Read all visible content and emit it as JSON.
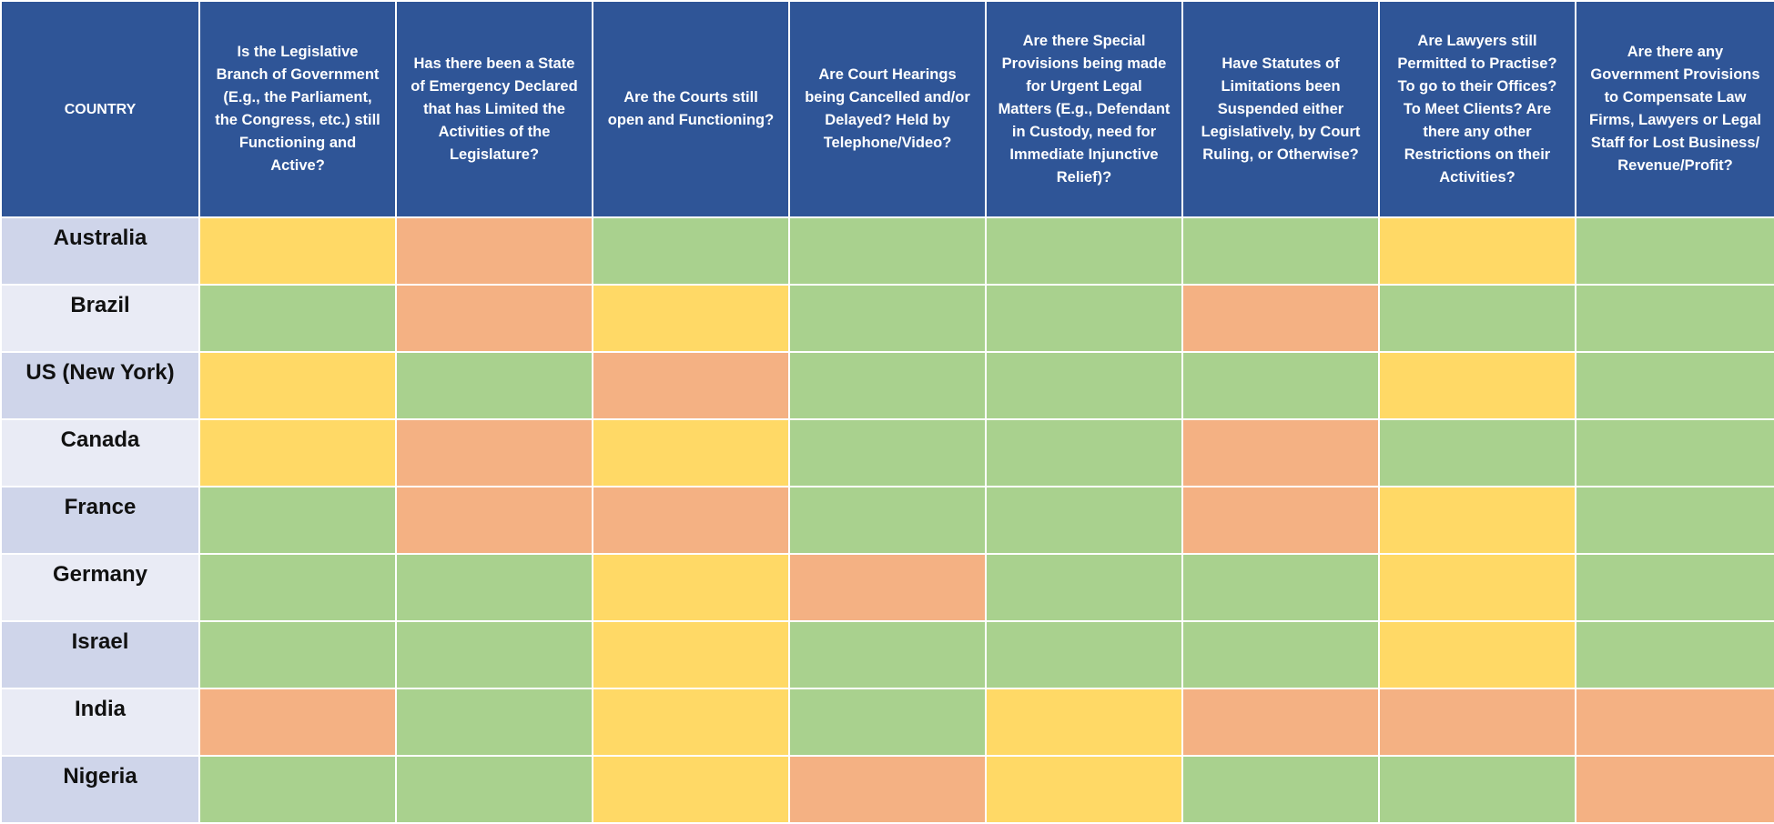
{
  "colors": {
    "header_bg": "#2f5597",
    "header_text": "#ffffff",
    "country_row_odd": "#cfd5ea",
    "country_row_even": "#e9ebf5",
    "green": "#a9d18e",
    "yellow": "#ffd966",
    "orange": "#f4b183"
  },
  "headers": [
    "COUNTRY",
    "Is the Legislative Branch of Government (E.g., the Parliament, the Congress, etc.) still Functioning and Active?",
    "Has there been a State of Emergency Declared that has Limited the Activities of the Legislature?",
    "Are the Courts still open and Functioning?",
    "Are Court Hearings being Cancelled and/or Delayed? Held by Telephone/Video?",
    "Are there Special Provisions being made for Urgent Legal Matters (E.g., Defendant in Custody, need for Immediate Injunctive Relief)?",
    "Have Statutes of Limitations been Suspended either Legislatively, by Court Ruling, or Otherwise?",
    "Are Lawyers still Permitted to Practise? To go to their Offices? To Meet Clients? Are there any other Restrictions on their Activities?",
    "Are there any Government Provisions to Compensate Law Firms, Lawyers or Legal Staff for Lost Business/ Revenue/Profit?"
  ],
  "rows": [
    {
      "country": "Australia",
      "cells": [
        "yellow",
        "orange",
        "green",
        "green",
        "green",
        "green",
        "yellow",
        "green"
      ]
    },
    {
      "country": "Brazil",
      "cells": [
        "green",
        "orange",
        "yellow",
        "green",
        "green",
        "orange",
        "green",
        "green"
      ]
    },
    {
      "country": "US (New York)",
      "cells": [
        "yellow",
        "green",
        "orange",
        "green",
        "green",
        "green",
        "yellow",
        "green"
      ]
    },
    {
      "country": "Canada",
      "cells": [
        "yellow",
        "orange",
        "yellow",
        "green",
        "green",
        "orange",
        "green",
        "green"
      ]
    },
    {
      "country": "France",
      "cells": [
        "green",
        "orange",
        "orange",
        "green",
        "green",
        "orange",
        "yellow",
        "green"
      ]
    },
    {
      "country": "Germany",
      "cells": [
        "green",
        "green",
        "yellow",
        "orange",
        "green",
        "green",
        "yellow",
        "green"
      ]
    },
    {
      "country": "Israel",
      "cells": [
        "green",
        "green",
        "yellow",
        "green",
        "green",
        "green",
        "yellow",
        "green"
      ]
    },
    {
      "country": "India",
      "cells": [
        "orange",
        "green",
        "yellow",
        "green",
        "yellow",
        "orange",
        "orange",
        "orange"
      ]
    },
    {
      "country": "Nigeria",
      "cells": [
        "green",
        "green",
        "yellow",
        "orange",
        "yellow",
        "green",
        "green",
        "orange"
      ]
    }
  ]
}
